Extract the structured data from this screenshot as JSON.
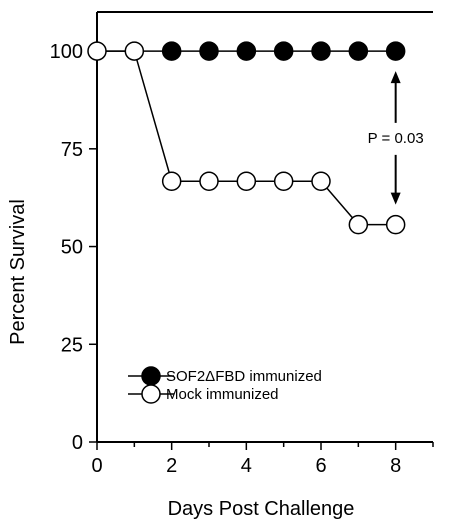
{
  "chart_data": {
    "type": "line",
    "xlabel": "Days Post Challenge",
    "ylabel": "Percent Survival",
    "xlim": [
      0,
      9
    ],
    "ylim": [
      0,
      110
    ],
    "xticks": [
      0,
      2,
      4,
      6,
      8
    ],
    "yticks": [
      0,
      25,
      50,
      75,
      100
    ],
    "grid": false,
    "legend_position": "bottom-left",
    "series": [
      {
        "name": "SOF2ΔFBD immunized",
        "marker": "filled-circle",
        "color": "#000000",
        "x": [
          0,
          1,
          2,
          3,
          4,
          5,
          6,
          7,
          8
        ],
        "y": [
          100,
          100,
          100,
          100,
          100,
          100,
          100,
          100,
          100
        ]
      },
      {
        "name": "Mock immunized",
        "marker": "open-circle",
        "color": "#000000",
        "x": [
          0,
          1,
          2,
          3,
          4,
          5,
          6,
          7,
          8
        ],
        "y": [
          100,
          100,
          66.7,
          66.7,
          66.7,
          66.7,
          66.7,
          55.6,
          55.6
        ]
      }
    ],
    "annotation": {
      "text": "P = 0.03",
      "x": 8,
      "y_top": 100,
      "y_bottom": 55.6
    }
  }
}
